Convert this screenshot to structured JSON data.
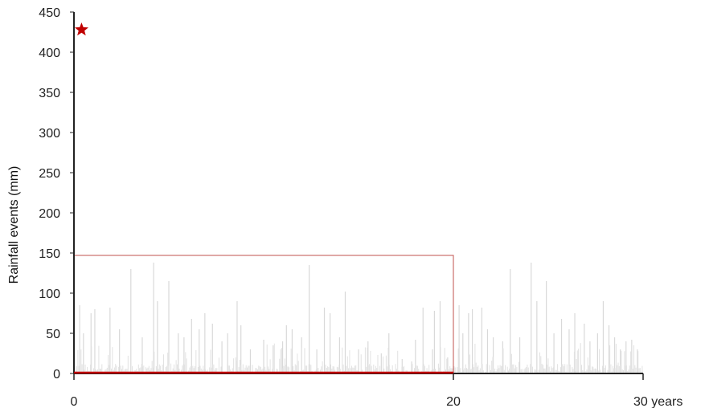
{
  "chart_data": {
    "type": "bar",
    "title": "",
    "ylabel": "Rainfall events (mm)",
    "xlabel": "",
    "ylim": [
      0,
      450
    ],
    "xlim": [
      0,
      30
    ],
    "y_ticks": [
      "0",
      "50",
      "100",
      "150",
      "200",
      "250",
      "300",
      "350",
      "400",
      "450"
    ],
    "x_ticks": [
      {
        "value": 0,
        "label": "0"
      },
      {
        "value": 20,
        "label": "20"
      },
      {
        "value": 30,
        "label": "30 years"
      }
    ],
    "grid": false,
    "series": [
      {
        "color": "#d9d9d9",
        "points": [
          {
            "x": 0.3,
            "y": 85
          },
          {
            "x": 0.5,
            "y": 50
          },
          {
            "x": 0.9,
            "y": 75
          },
          {
            "x": 1.1,
            "y": 80
          },
          {
            "x": 1.9,
            "y": 82
          },
          {
            "x": 2.4,
            "y": 55
          },
          {
            "x": 3.0,
            "y": 130
          },
          {
            "x": 3.6,
            "y": 45
          },
          {
            "x": 4.2,
            "y": 138
          },
          {
            "x": 4.4,
            "y": 90
          },
          {
            "x": 5.0,
            "y": 115
          },
          {
            "x": 5.5,
            "y": 50
          },
          {
            "x": 5.8,
            "y": 45
          },
          {
            "x": 6.2,
            "y": 68
          },
          {
            "x": 6.6,
            "y": 55
          },
          {
            "x": 6.9,
            "y": 75
          },
          {
            "x": 7.3,
            "y": 62
          },
          {
            "x": 7.8,
            "y": 40
          },
          {
            "x": 8.1,
            "y": 50
          },
          {
            "x": 8.6,
            "y": 90
          },
          {
            "x": 8.8,
            "y": 60
          },
          {
            "x": 9.3,
            "y": 30
          },
          {
            "x": 10.0,
            "y": 42
          },
          {
            "x": 10.5,
            "y": 35
          },
          {
            "x": 11.0,
            "y": 40
          },
          {
            "x": 11.2,
            "y": 60
          },
          {
            "x": 11.5,
            "y": 55
          },
          {
            "x": 12.0,
            "y": 45
          },
          {
            "x": 12.4,
            "y": 135
          },
          {
            "x": 12.8,
            "y": 30
          },
          {
            "x": 13.2,
            "y": 82
          },
          {
            "x": 13.5,
            "y": 75
          },
          {
            "x": 14.0,
            "y": 45
          },
          {
            "x": 14.3,
            "y": 102
          },
          {
            "x": 15.0,
            "y": 30
          },
          {
            "x": 15.5,
            "y": 40
          },
          {
            "x": 16.2,
            "y": 25
          },
          {
            "x": 16.6,
            "y": 50
          },
          {
            "x": 17.3,
            "y": 18
          },
          {
            "x": 17.8,
            "y": 15
          },
          {
            "x": 18.0,
            "y": 42
          },
          {
            "x": 18.4,
            "y": 82
          },
          {
            "x": 18.9,
            "y": 30
          },
          {
            "x": 19.0,
            "y": 78
          },
          {
            "x": 19.3,
            "y": 90
          },
          {
            "x": 19.7,
            "y": 20
          },
          {
            "x": 20.3,
            "y": 85
          },
          {
            "x": 20.5,
            "y": 50
          },
          {
            "x": 20.8,
            "y": 75
          },
          {
            "x": 21.0,
            "y": 80
          },
          {
            "x": 21.5,
            "y": 82
          },
          {
            "x": 21.8,
            "y": 55
          },
          {
            "x": 22.1,
            "y": 45
          },
          {
            "x": 22.6,
            "y": 40
          },
          {
            "x": 23.0,
            "y": 130
          },
          {
            "x": 23.5,
            "y": 45
          },
          {
            "x": 24.1,
            "y": 138
          },
          {
            "x": 24.4,
            "y": 90
          },
          {
            "x": 24.9,
            "y": 115
          },
          {
            "x": 25.3,
            "y": 50
          },
          {
            "x": 25.7,
            "y": 68
          },
          {
            "x": 26.1,
            "y": 55
          },
          {
            "x": 26.4,
            "y": 75
          },
          {
            "x": 26.9,
            "y": 62
          },
          {
            "x": 27.2,
            "y": 40
          },
          {
            "x": 27.6,
            "y": 50
          },
          {
            "x": 27.9,
            "y": 90
          },
          {
            "x": 28.2,
            "y": 60
          },
          {
            "x": 28.5,
            "y": 45
          },
          {
            "x": 28.8,
            "y": 30
          },
          {
            "x": 29.1,
            "y": 40
          },
          {
            "x": 29.4,
            "y": 42
          },
          {
            "x": 29.7,
            "y": 30
          }
        ]
      }
    ],
    "highlight_box": {
      "x0": 0,
      "x1": 20,
      "y0": 0,
      "y1": 147,
      "color": "#c0504d"
    },
    "marker": {
      "x": 0.4,
      "y": 428,
      "symbol": "star",
      "color": "#c00000"
    }
  }
}
